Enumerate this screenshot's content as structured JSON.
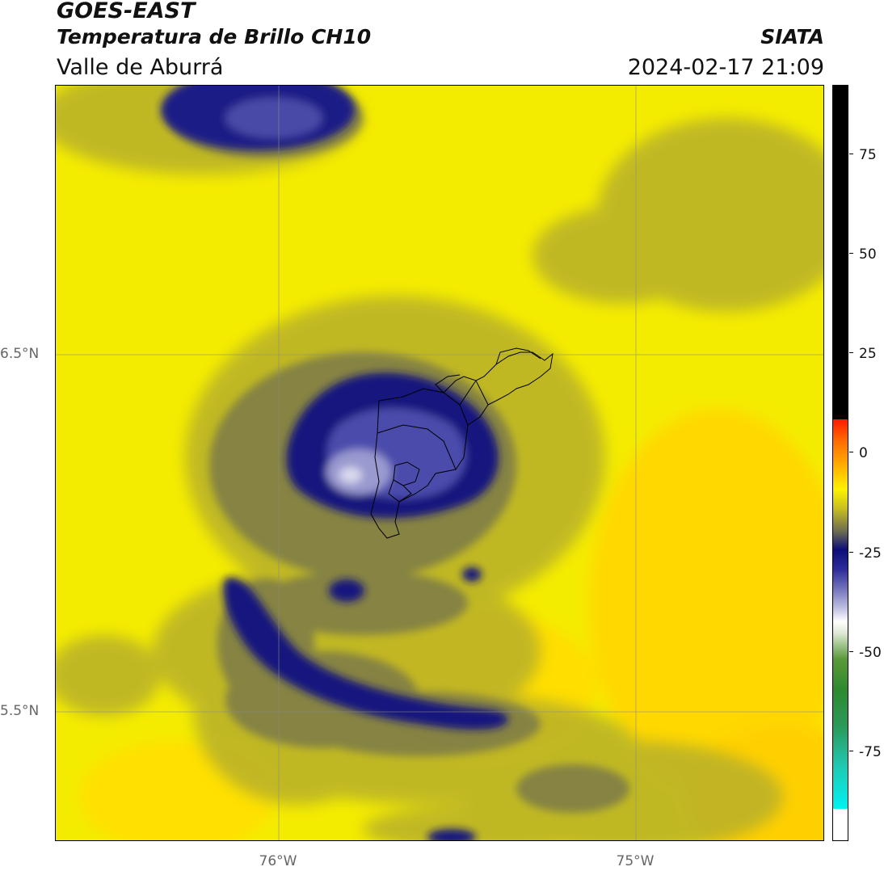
{
  "header": {
    "title": "GOES-EAST",
    "subtitle": "Temperatura de Brillo CH10",
    "region": "Valle de Aburrá",
    "organization": "SIATA",
    "datetime": "2024-02-17 21:09"
  },
  "map": {
    "lat_labels": [
      "6.5°N",
      "5.5°N"
    ],
    "lon_labels": [
      "76°W",
      "75°W"
    ]
  },
  "colorbar": {
    "tick_labels": [
      "75",
      "50",
      "25",
      "0",
      "-25",
      "-50",
      "-75"
    ],
    "colors": {
      "warm": "#000000",
      "red": "#ff1a00",
      "orange": "#ffa800",
      "yellow": "#fff200",
      "olive": "#6e6e50",
      "navy": "#0e0e7a",
      "lavender": "#c8c8e6",
      "white": "#ffffff",
      "green": "#2e8a2e",
      "cyan": "#00f2f2"
    }
  }
}
